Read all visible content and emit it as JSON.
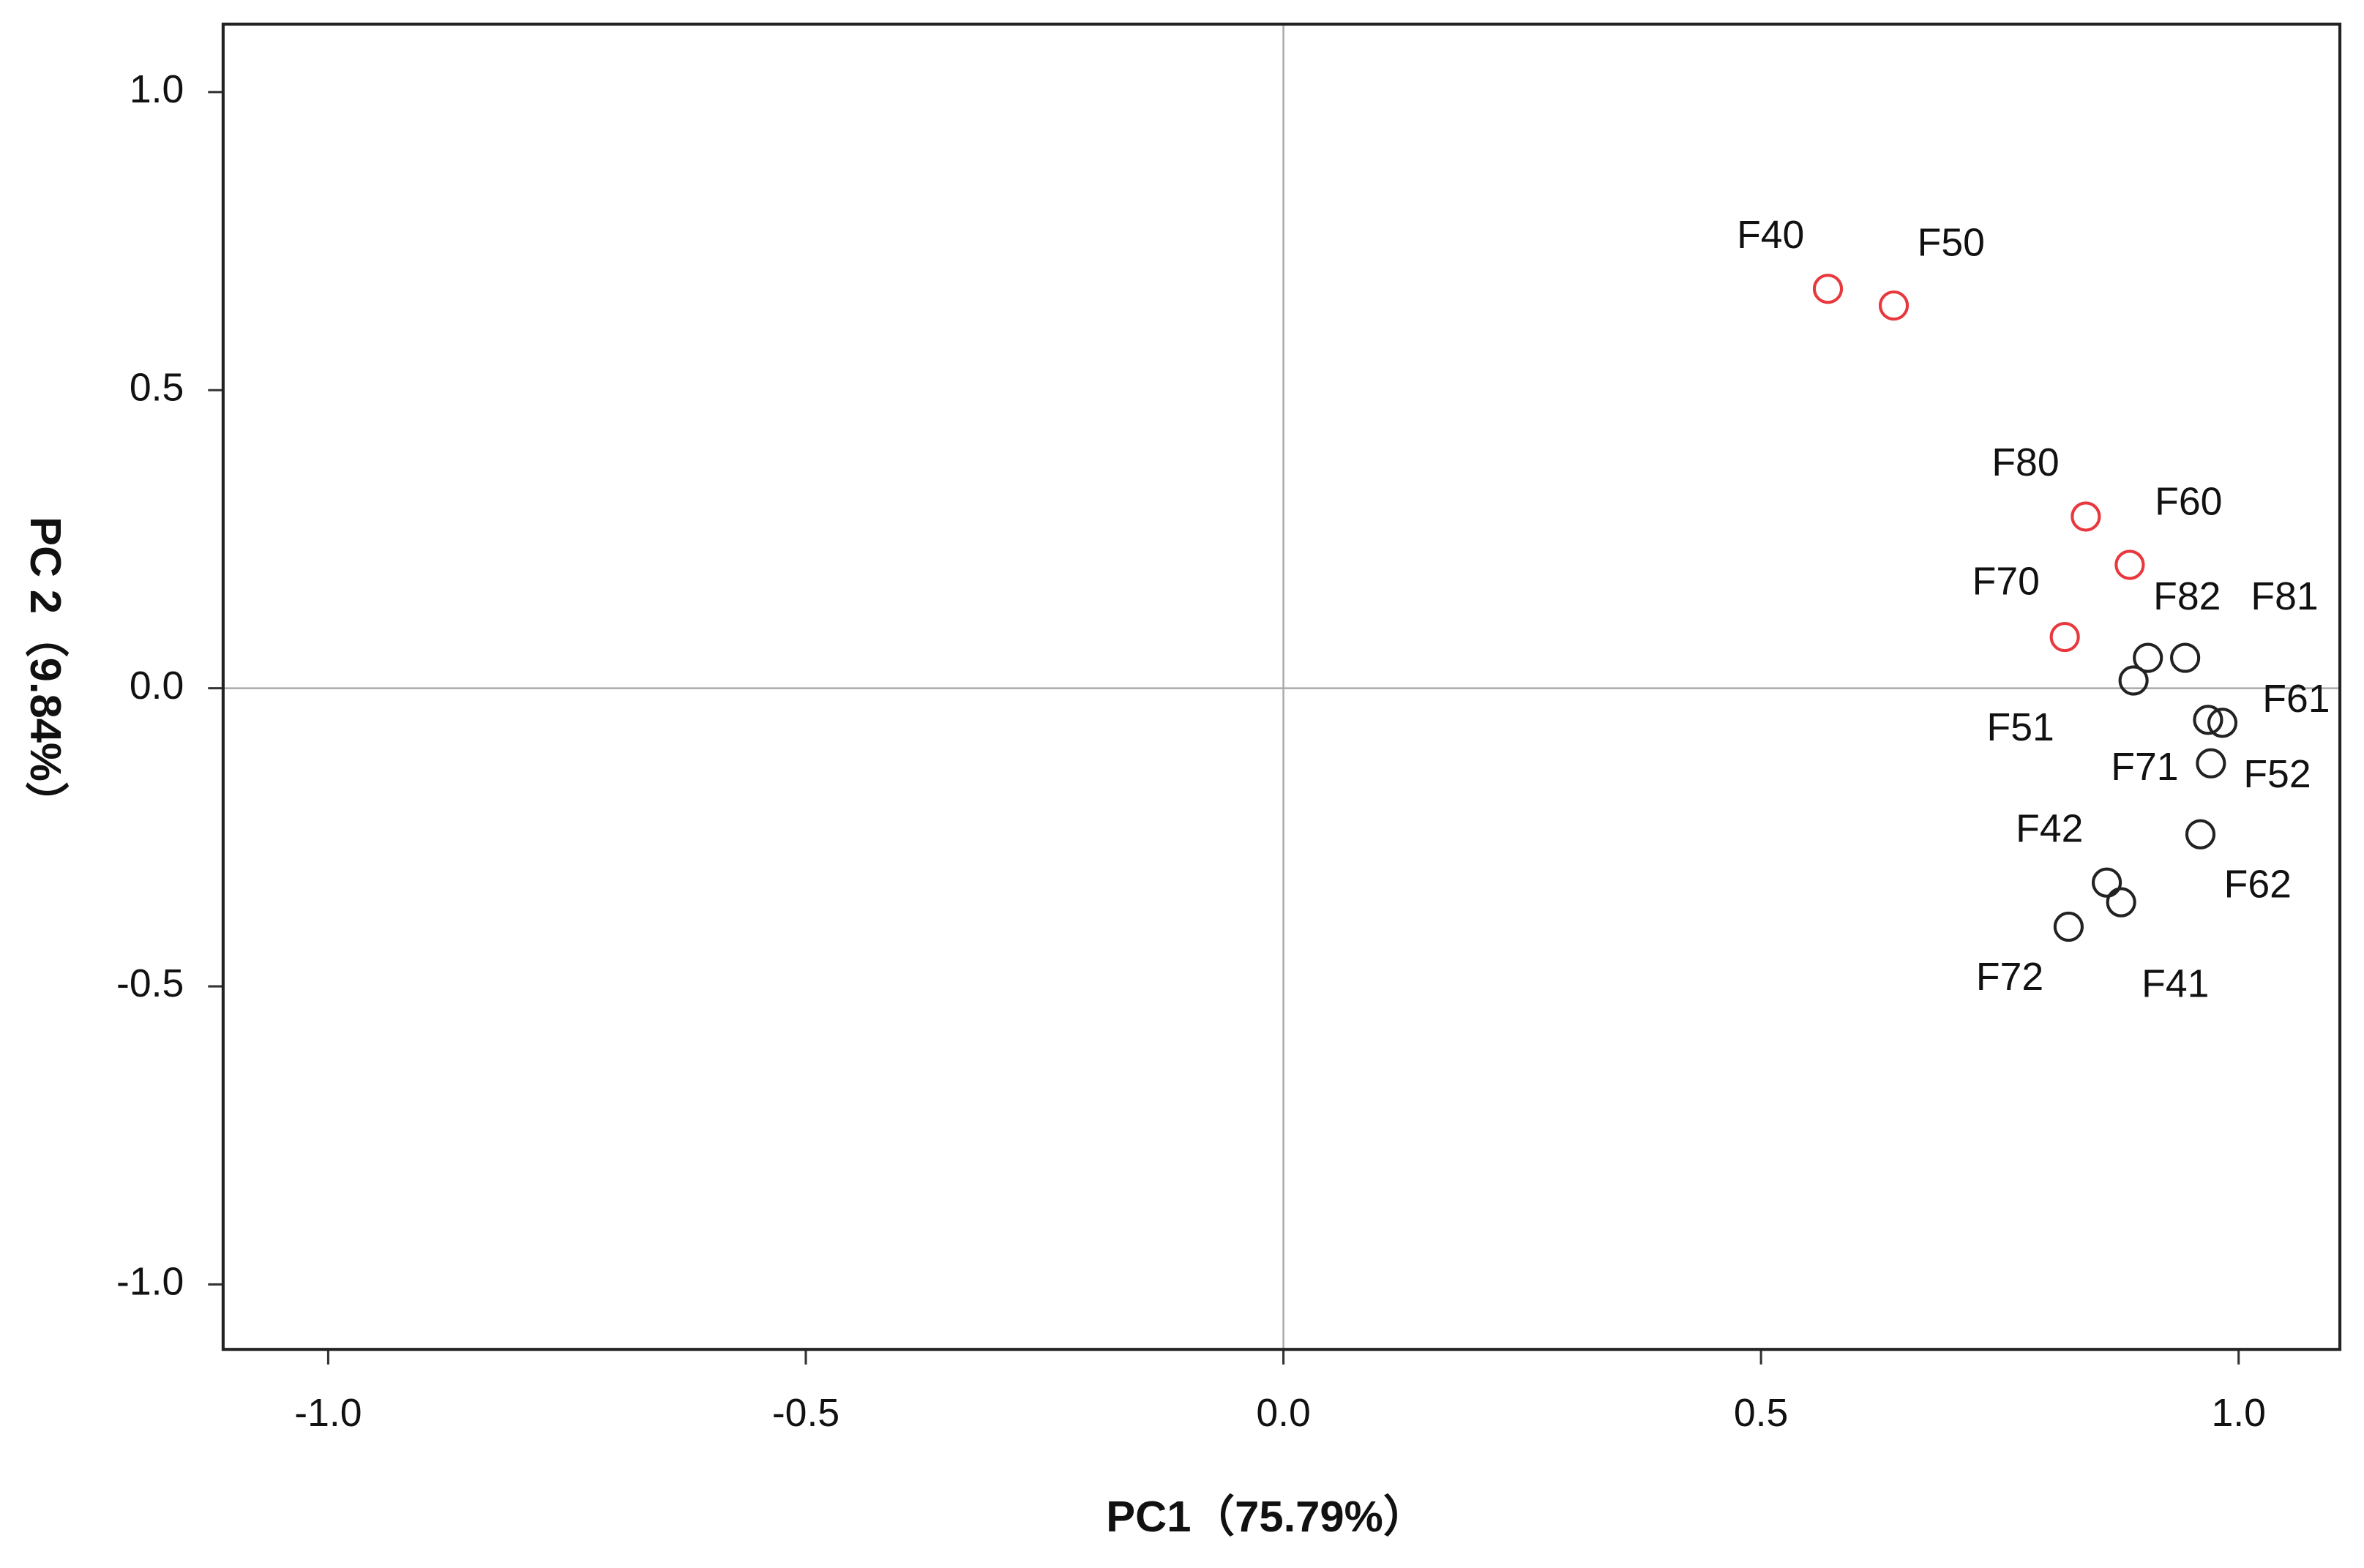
{
  "chart_data": {
    "type": "scatter",
    "xlabel": "PC1（75.79%）",
    "ylabel": "PC 2（9.84%）",
    "xlim": [
      -1.11,
      1.106
    ],
    "ylim": [
      -1.109,
      1.114
    ],
    "xticks": [
      {
        "value": -1.0,
        "label": "-1.0"
      },
      -0.5,
      {
        "value": 0.0,
        "label": "0.0"
      },
      0.5,
      {
        "value": 1.0,
        "label": "1.0"
      }
    ],
    "yticks": [
      {
        "value": -1.0,
        "label": "-1.0"
      },
      -0.5,
      {
        "value": 0.0,
        "label": "0.0"
      },
      0.5,
      {
        "value": 1.0,
        "label": "1.0"
      }
    ],
    "reference_lines": true,
    "series": [
      {
        "color": "#e8383d",
        "labels": [
          "F40",
          "F50",
          "F80",
          "F60",
          "F70"
        ],
        "x": [
          0.57,
          0.639,
          0.84,
          0.886,
          0.818
        ],
        "values": [
          0.67,
          0.642,
          0.288,
          0.207,
          0.086
        ]
      },
      {
        "color": "#222222",
        "labels": [
          "F82",
          "F81",
          "F51",
          "F71",
          "F61",
          "F52",
          "F62",
          "F42",
          "F41",
          "F72"
        ],
        "x": [
          0.905,
          0.944,
          0.89,
          0.968,
          0.983,
          0.971,
          0.96,
          0.862,
          0.877,
          0.822
        ],
        "values": [
          0.051,
          0.051,
          0.013,
          -0.053,
          -0.058,
          -0.126,
          -0.245,
          -0.326,
          -0.359,
          -0.4
        ]
      }
    ]
  }
}
